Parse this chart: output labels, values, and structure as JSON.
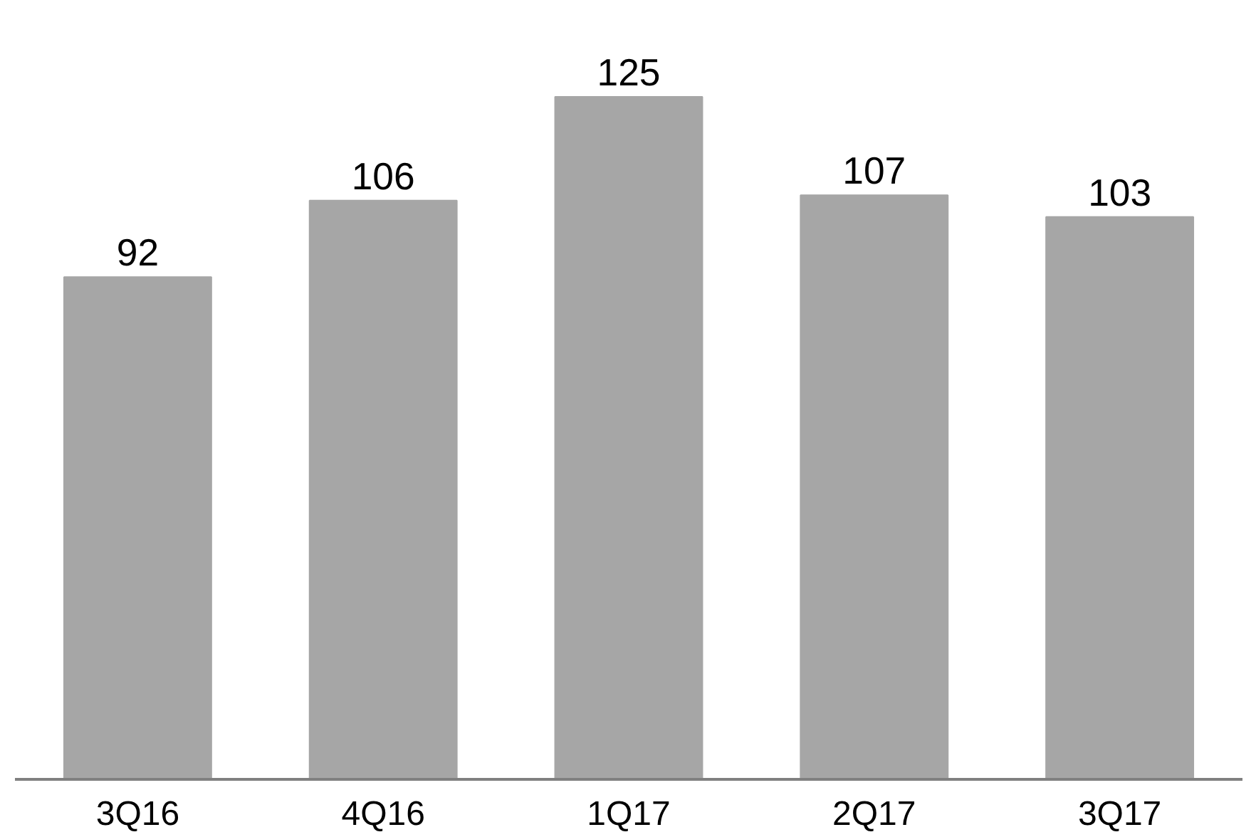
{
  "chart_data": {
    "type": "bar",
    "categories": [
      "3Q16",
      "4Q16",
      "1Q17",
      "2Q17",
      "3Q17"
    ],
    "values": [
      92,
      106,
      125,
      107,
      103
    ],
    "color": "#a6a6a6",
    "data_labels": true
  }
}
